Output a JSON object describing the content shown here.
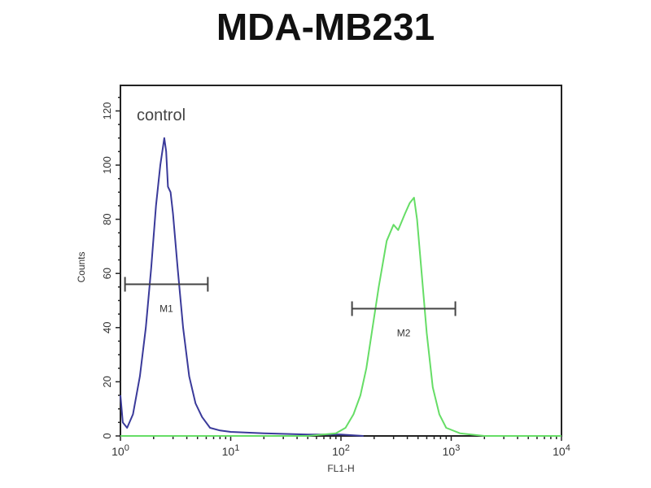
{
  "chart_data": {
    "type": "line",
    "title": "MDA-MB231",
    "xlabel": "FL1-H",
    "ylabel": "Counts",
    "xscale": "log",
    "xlim": [
      1,
      10000
    ],
    "ylim": [
      0,
      130
    ],
    "xticks": [
      {
        "base": "10",
        "exp": "0"
      },
      {
        "base": "10",
        "exp": "1"
      },
      {
        "base": "10",
        "exp": "2"
      },
      {
        "base": "10",
        "exp": "3"
      },
      {
        "base": "10",
        "exp": "4"
      }
    ],
    "yticks": [
      "0",
      "20",
      "40",
      "60",
      "80",
      "100",
      "120"
    ],
    "annotation": "control",
    "grid": false,
    "series": [
      {
        "color": "#3a3a9a",
        "x": [
          1.0,
          1.05,
          1.15,
          1.3,
          1.5,
          1.7,
          1.9,
          2.1,
          2.3,
          2.5,
          2.6,
          2.7,
          2.85,
          3.0,
          3.3,
          3.7,
          4.2,
          4.8,
          5.5,
          6.5,
          8,
          10,
          20,
          50,
          100,
          160
        ],
        "y": [
          15,
          5,
          3,
          8,
          22,
          40,
          62,
          85,
          100,
          110,
          105,
          92,
          90,
          82,
          62,
          40,
          22,
          12,
          7,
          3,
          2,
          1.5,
          1,
          0.5,
          0.5,
          0
        ]
      },
      {
        "color": "#66dd66",
        "x": [
          1,
          50,
          90,
          110,
          130,
          150,
          170,
          190,
          220,
          260,
          300,
          330,
          380,
          420,
          460,
          490,
          540,
          600,
          680,
          780,
          900,
          1200,
          2000,
          10000
        ],
        "y": [
          0,
          0,
          1,
          3,
          8,
          15,
          25,
          38,
          55,
          72,
          78,
          76,
          82,
          86,
          88,
          80,
          60,
          38,
          18,
          8,
          3,
          1,
          0,
          0
        ]
      }
    ],
    "markers": [
      {
        "label": "M1",
        "x_range": [
          1.1,
          6.2
        ],
        "y": 56
      },
      {
        "label": "M2",
        "x_range": [
          126,
          1090
        ],
        "y": 47
      }
    ]
  }
}
